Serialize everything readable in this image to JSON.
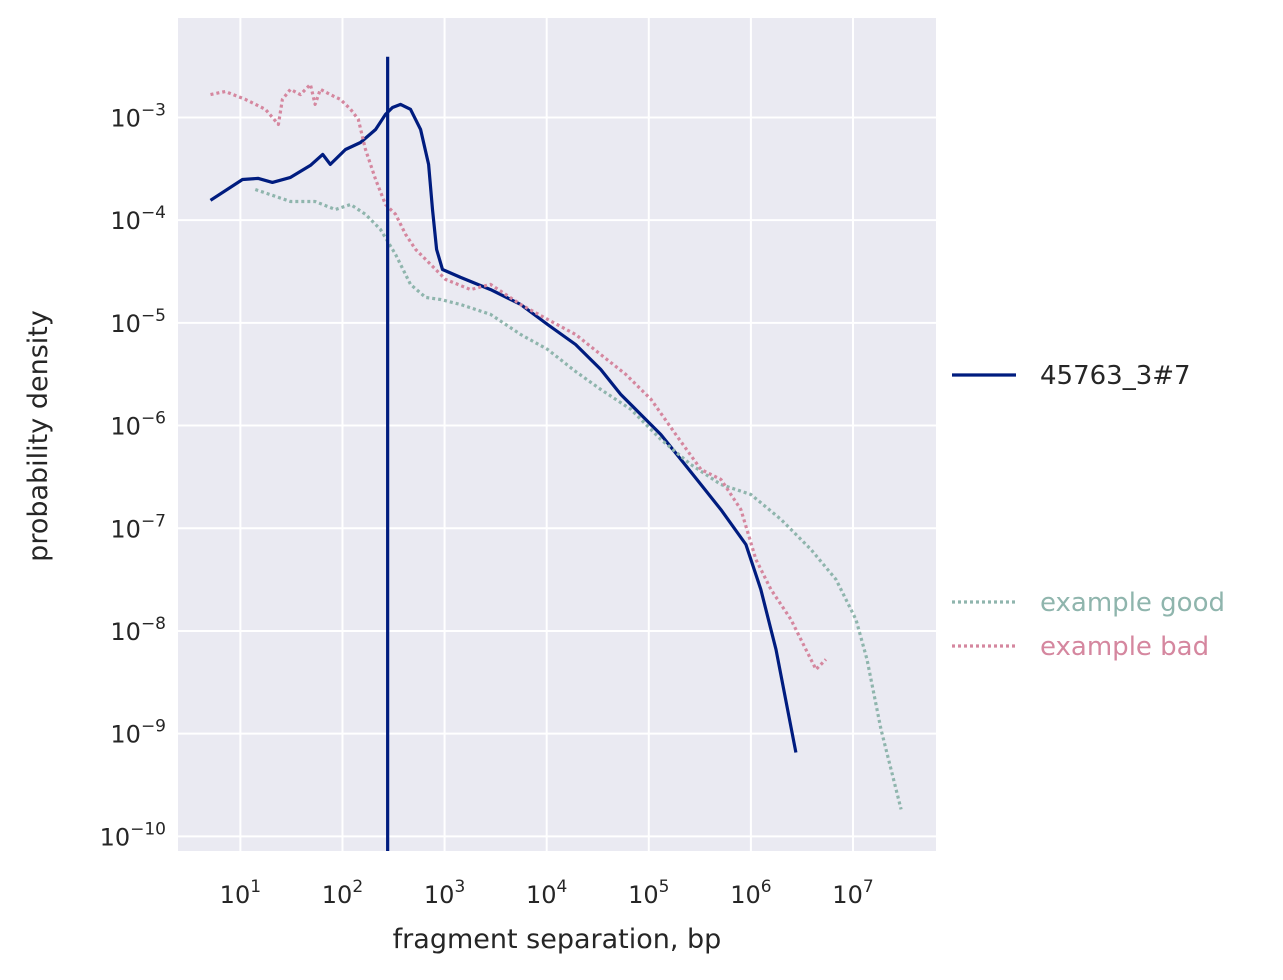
{
  "chart_data": {
    "type": "line",
    "title": "",
    "xlabel": "fragment separation, bp",
    "ylabel": "probability density",
    "xscale": "log",
    "yscale": "log",
    "xlim": [
      2.45,
      65000000.0
    ],
    "ylim": [
      7.2e-11,
      0.0093
    ],
    "x_ticks": [
      10,
      100,
      1000,
      10000,
      100000,
      1000000,
      10000000
    ],
    "x_tick_labels": [
      "10^1",
      "10^2",
      "10^3",
      "10^4",
      "10^5",
      "10^6",
      "10^7"
    ],
    "y_ticks": [
      0.001,
      0.0001,
      1e-05,
      1e-06,
      1e-07,
      1e-08,
      1e-09,
      1e-10
    ],
    "y_tick_labels": [
      "10^-3",
      "10^-4",
      "10^-5",
      "10^-6",
      "10^-7",
      "10^-8",
      "10^-9",
      "10^-10"
    ],
    "grid": true,
    "background": "#eaeaf2",
    "legend_placement": "right, outside",
    "vertical_line": {
      "x": 277,
      "y_top": 0.0039,
      "color": "#001c7f"
    },
    "series": [
      {
        "name": "45763_3#7",
        "style": "solid",
        "color": "#001c7f",
        "x": [
          5.1,
          10.5,
          15,
          20.6,
          31,
          48.5,
          64,
          76,
          107,
          150,
          211,
          264,
          309,
          371,
          464,
          582,
          697,
          762,
          835,
          955,
          1435,
          2825,
          5560,
          10200,
          19200,
          33800,
          53100,
          83500,
          131000,
          206000,
          324000,
          508000,
          893000,
          1250000,
          1760000,
          2760000
        ],
        "y": [
          0.000156,
          0.000249,
          0.000255,
          0.000233,
          0.000261,
          0.000341,
          0.000437,
          0.000349,
          0.000488,
          0.000571,
          0.000764,
          0.00107,
          0.00125,
          0.00134,
          0.0012,
          0.000764,
          0.000349,
          0.000127,
          5.19e-05,
          3.31e-05,
          2.77e-05,
          2.11e-05,
          1.51e-05,
          9.64e-06,
          6.16e-06,
          3.52e-06,
          2.01e-06,
          1.28e-06,
          8.19e-07,
          4.68e-07,
          2.67e-07,
          1.52e-07,
          6.95e-08,
          2.54e-08,
          6.6e-09,
          6.56e-10
        ]
      },
      {
        "name": "example good",
        "style": "dotted",
        "color": "#8fb5ad",
        "x": [
          14,
          31,
          54,
          85,
          120,
          168,
          236,
          331,
          464,
          652,
          914,
          1435,
          2825,
          5560,
          10200,
          19200,
          33800,
          66700,
          131000,
          258000,
          508000,
          1000000,
          1970000,
          3870000,
          6810000,
          10700000,
          13700000,
          18800000,
          29600000
        ],
        "y": [
          0.000199,
          0.000152,
          0.000152,
          0.000127,
          0.000142,
          0.000114,
          8.11e-05,
          4.63e-05,
          2.37e-05,
          1.77e-05,
          1.69e-05,
          1.51e-05,
          1.21e-05,
          7.71e-06,
          5.51e-06,
          3.36e-06,
          2.25e-06,
          1.44e-06,
          7.33e-07,
          4.18e-07,
          2.67e-07,
          2.13e-07,
          1.22e-07,
          6.22e-08,
          3.17e-08,
          1.29e-08,
          5.28e-09,
          1.1e-09,
          1.83e-10
        ]
      },
      {
        "name": "example bad",
        "style": "dotted",
        "color": "#d5879f",
        "x": [
          5.1,
          7.1,
          11.2,
          17.6,
          23.6,
          25.8,
          31,
          38.7,
          48.5,
          54,
          60.8,
          76,
          95.5,
          120,
          143,
          168,
          211,
          264,
          331,
          415,
          520,
          729,
          1020,
          1800,
          2825,
          5560,
          10200,
          19200,
          33800,
          59600,
          105000,
          184000,
          324000,
          508000,
          798000,
          1120000,
          1570000,
          2470000,
          3460000,
          4340000,
          5430000
        ],
        "y": [
          0.00167,
          0.00179,
          0.0015,
          0.0012,
          0.000855,
          0.0015,
          0.00188,
          0.00167,
          0.0021,
          0.00134,
          0.00188,
          0.00167,
          0.0015,
          0.0012,
          0.000957,
          0.000488,
          0.000249,
          0.000142,
          0.000114,
          7.26e-05,
          5.19e-05,
          3.71e-05,
          2.65e-05,
          2.11e-05,
          2.37e-05,
          1.51e-05,
          1.08e-05,
          7.71e-06,
          4.92e-06,
          3.15e-06,
          1.8e-06,
          8.19e-07,
          3.74e-07,
          2.99e-07,
          1.52e-07,
          4.97e-08,
          2.54e-08,
          1.29e-08,
          6.6e-09,
          4.22e-09,
          5.28e-09
        ]
      }
    ]
  }
}
